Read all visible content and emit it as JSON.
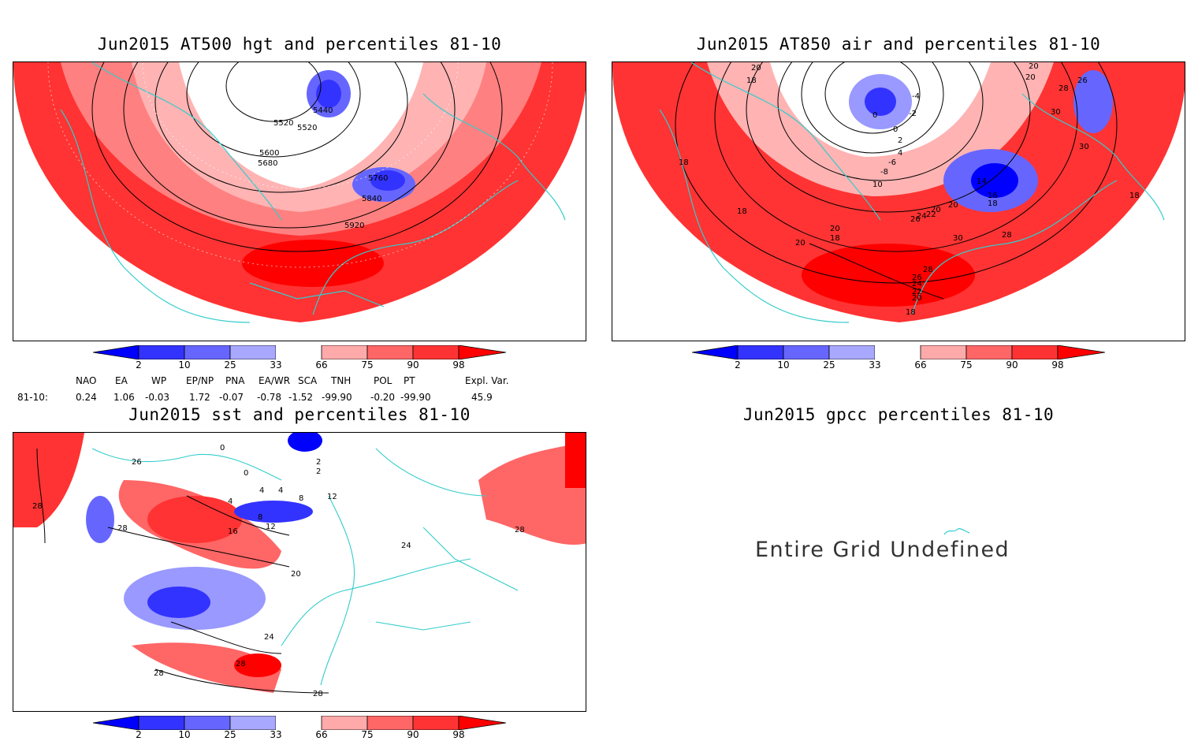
{
  "panels": {
    "hgt": {
      "title": "Jun2015 AT500 hgt and percentiles 81-10",
      "contour_labels": [
        "5440",
        "5520",
        "5520",
        "5600",
        "5680",
        "5760",
        "5840",
        "5920"
      ]
    },
    "air": {
      "title": "Jun2015 AT850 air and percentiles 81-10",
      "contour_labels": [
        "20",
        "18",
        "20",
        "20",
        "26",
        "28",
        "30",
        "30",
        "-4",
        "0",
        "-2",
        "0",
        "2",
        "4",
        "-6",
        "-8",
        "10",
        "14",
        "16",
        "18",
        "20",
        "20",
        "22",
        "24",
        "26",
        "28",
        "30",
        "18",
        "18",
        "20",
        "18",
        "20",
        "28",
        "26",
        "24",
        "22",
        "20",
        "18",
        "18"
      ]
    },
    "sst": {
      "title": "Jun2015 sst and percentiles 81-10",
      "contour_labels": [
        "28",
        "28",
        "0",
        "0",
        "4",
        "4",
        "4",
        "8",
        "8",
        "12",
        "12",
        "16",
        "20",
        "24",
        "24",
        "28",
        "28",
        "28",
        "28",
        "26",
        "2",
        "2"
      ]
    },
    "gpcc": {
      "title": "Jun2015 gpcc percentiles 81-10",
      "message": "Entire Grid Undefined"
    }
  },
  "colorbar": {
    "ticks": [
      "2",
      "10",
      "25",
      "33",
      "66",
      "75",
      "90",
      "98"
    ],
    "colors": [
      "#0000ff",
      "#3333ff",
      "#6666ff",
      "#a8a8ff",
      "#ffffff",
      "#ffaaaa",
      "#ff6666",
      "#ff3333",
      "#ff0000"
    ]
  },
  "indices": {
    "header": [
      "NAO",
      "EA",
      "WP",
      "EP/NP",
      "PNA",
      "EA/WR",
      "SCA",
      "TNH",
      "POL",
      "PT",
      "Expl. Var."
    ],
    "row_label": "81-10:",
    "values": [
      "0.24",
      "1.06",
      "-0.03",
      "1.72",
      "-0.07",
      "-0.78",
      "-1.52",
      "-99.90",
      "-0.20",
      "-99.90",
      "45.9"
    ]
  },
  "map_colors": {
    "red": "#ff3333",
    "red_light": "#ff8080",
    "red_pale": "#ffb3b3",
    "blue": "#3333ff",
    "blue_pale": "#9999ff",
    "coast": "#33cccc"
  }
}
